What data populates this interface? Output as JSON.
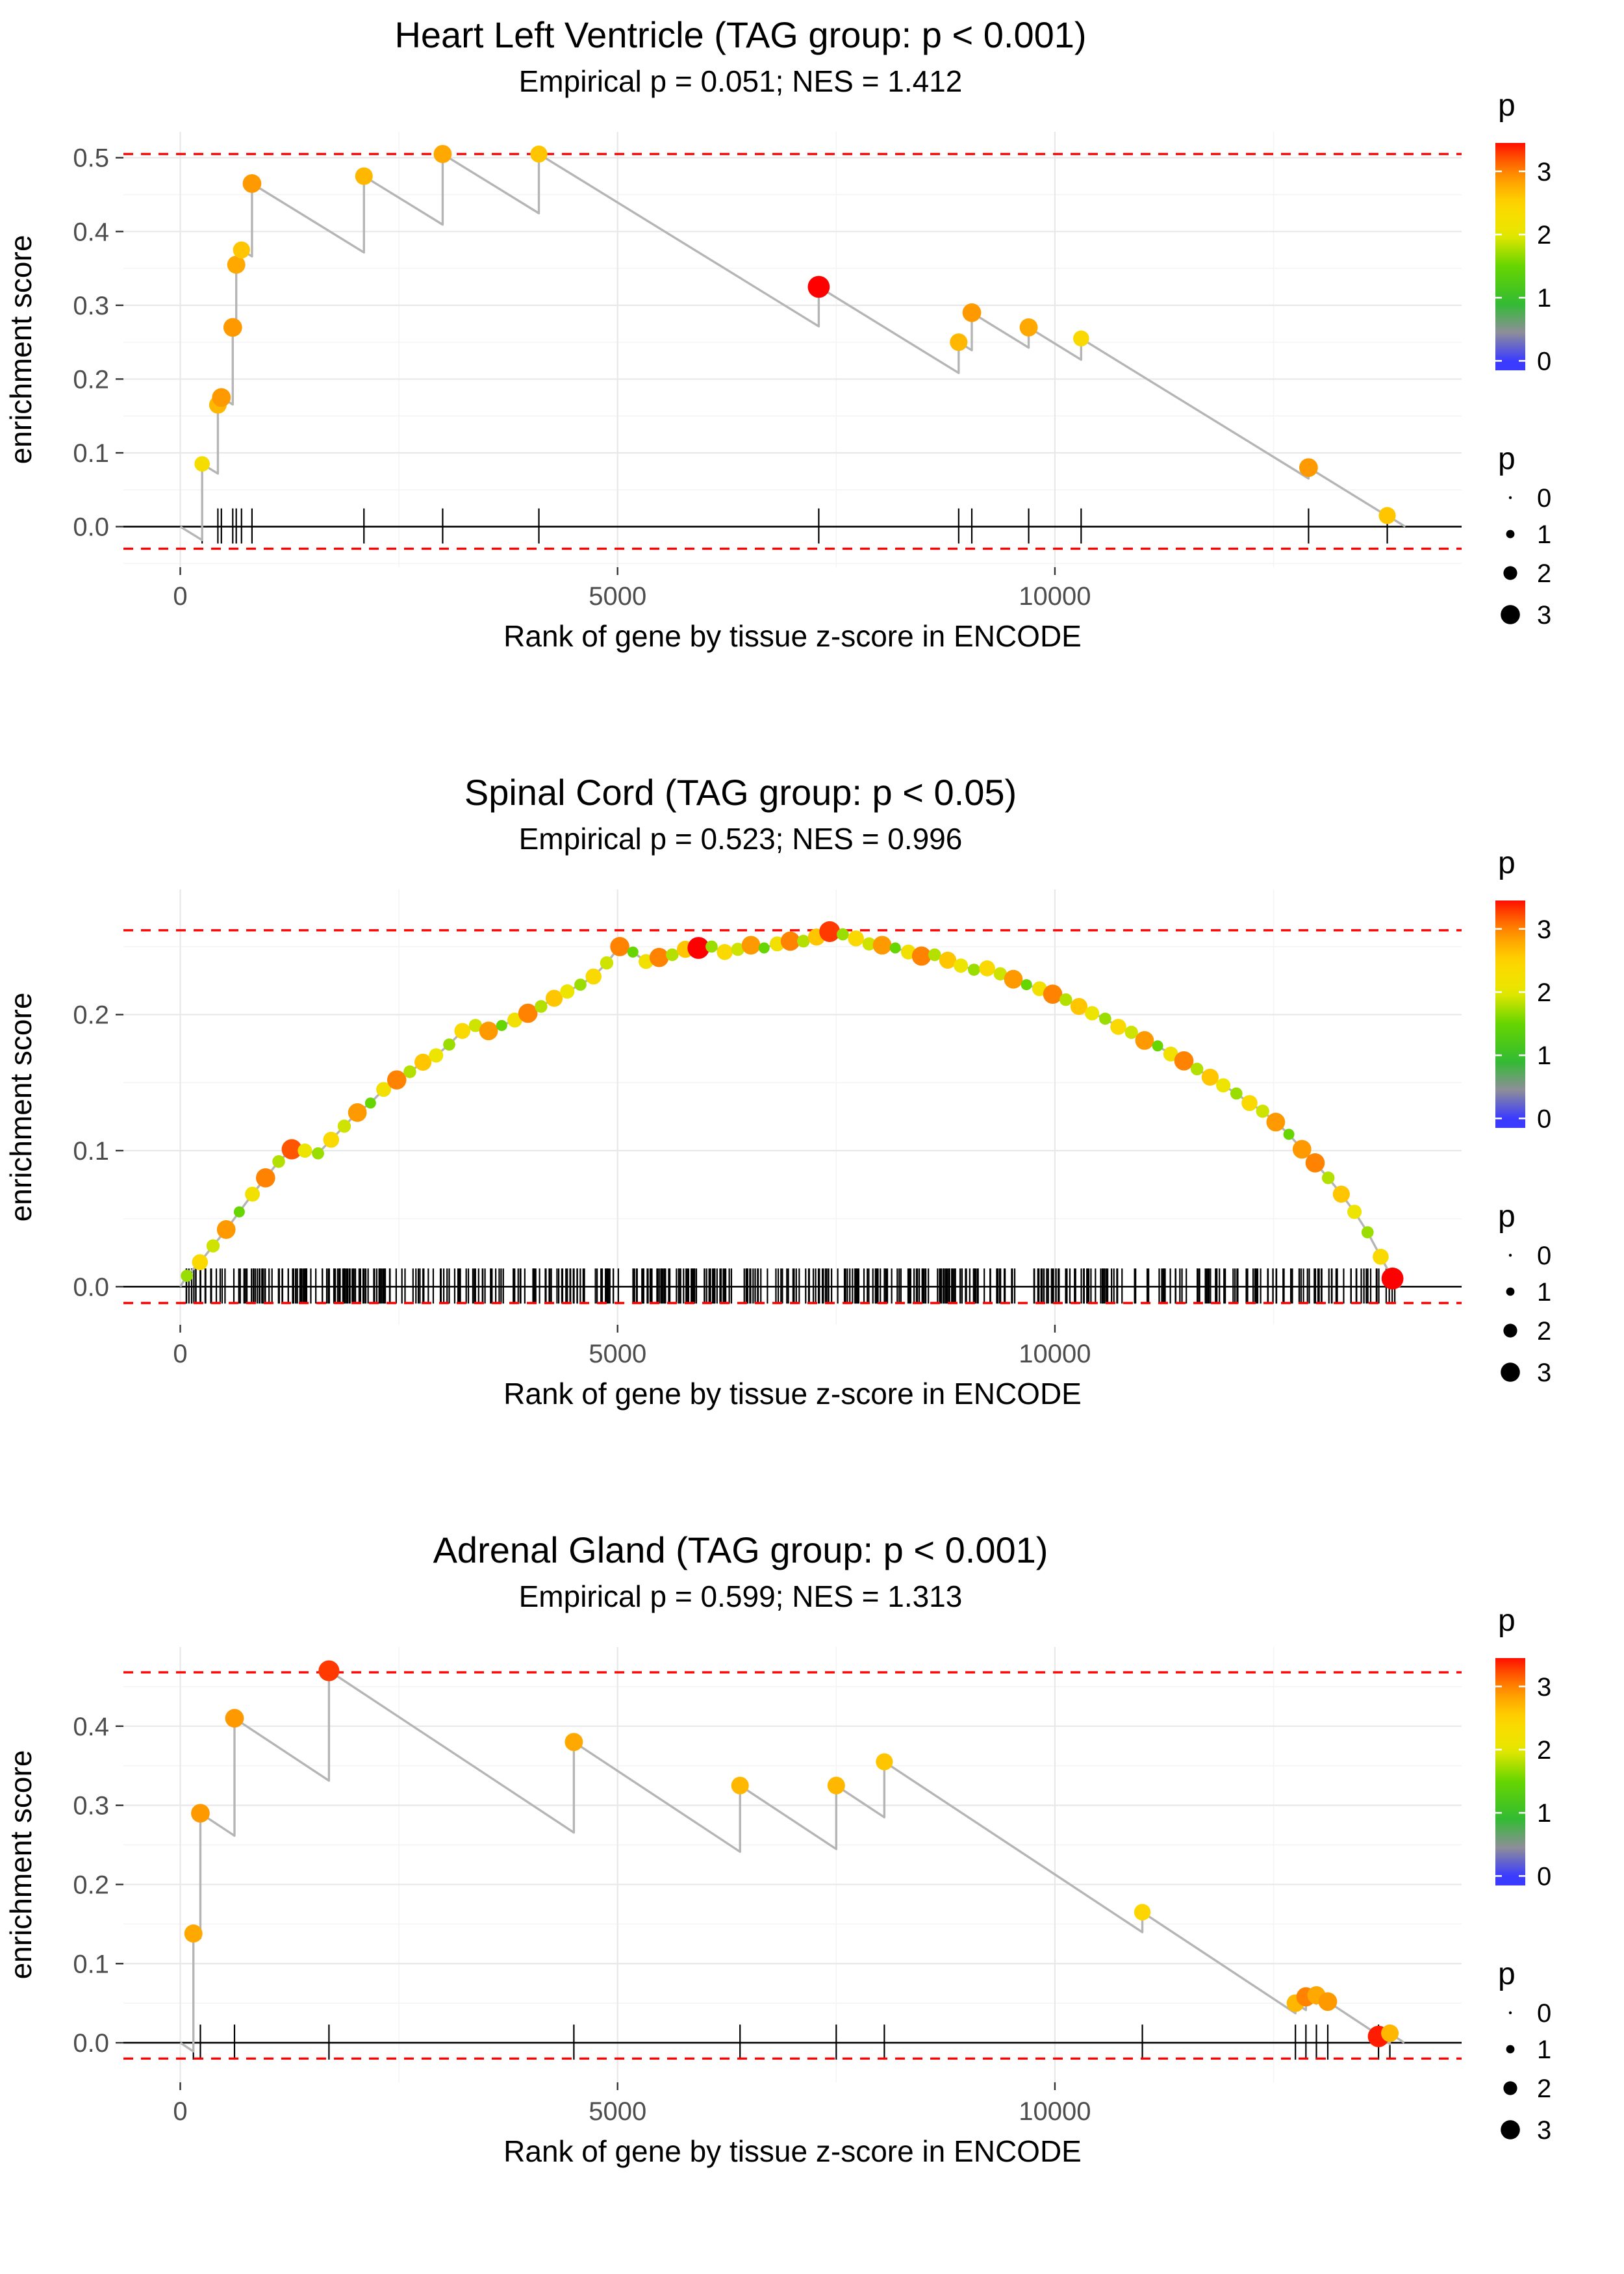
{
  "legend": {
    "color_title": "p",
    "color_ticks": [
      0,
      1,
      2,
      3
    ],
    "size_title": "p",
    "size_ticks": [
      0,
      1,
      2,
      3
    ],
    "p_min": -0.15,
    "p_max": 3.45,
    "colormap": [
      [
        0,
        "#3b3bff"
      ],
      [
        0.45,
        "#8e8e99"
      ],
      [
        0.9,
        "#33bb33"
      ],
      [
        1.5,
        "#66d500"
      ],
      [
        2.0,
        "#e8e800"
      ],
      [
        2.5,
        "#ffd500"
      ],
      [
        2.9,
        "#ff9900"
      ],
      [
        3.2,
        "#ff5500"
      ],
      [
        3.5,
        "#ff0000"
      ]
    ],
    "size_formula": {
      "base": 2.2,
      "per": 4.2
    },
    "legend_dot_radii": [
      2.2,
      6.4,
      10.6,
      14.8
    ]
  },
  "style": {
    "line_color": "#b5b5b5",
    "dashed_color": "#ff0000",
    "zero_line_color": "#000000",
    "rug_color": "#000000",
    "grid_major": "#e8e8e8",
    "grid_minor": "#f4f4f4",
    "tick_text": "#4d4d4d",
    "axis_title": "#000000"
  },
  "chart_data": [
    {
      "type": "line",
      "title": "Heart Left Ventricle (TAG group: p < 0.001)",
      "subtitle": "Empirical p = 0.051; NES = 1.412",
      "xlabel": "Rank of gene by tissue z-score in ENCODE",
      "ylabel": "enrichment score",
      "xlim": [
        -650,
        14650
      ],
      "x_ticks": [
        0,
        5000,
        10000
      ],
      "ylim": [
        -0.055,
        0.535
      ],
      "y_ticks": [
        0.0,
        0.1,
        0.2,
        0.3,
        0.4,
        0.5
      ],
      "dashed_lines": [
        0.505,
        -0.03
      ],
      "zero_line": 0,
      "line_mode": "sawtooth",
      "drop_slope": 7.3e-05,
      "points": [
        [
          250,
          0.085,
          2.3
        ],
        [
          430,
          0.165,
          2.7
        ],
        [
          470,
          0.175,
          2.9
        ],
        [
          600,
          0.27,
          2.9
        ],
        [
          640,
          0.355,
          2.8
        ],
        [
          700,
          0.375,
          2.6
        ],
        [
          820,
          0.465,
          2.9
        ],
        [
          2100,
          0.475,
          2.7
        ],
        [
          3000,
          0.505,
          2.8
        ],
        [
          4100,
          0.505,
          2.6
        ],
        [
          7300,
          0.325,
          3.5
        ],
        [
          8900,
          0.25,
          2.7
        ],
        [
          9050,
          0.29,
          2.9
        ],
        [
          9700,
          0.27,
          2.8
        ],
        [
          10300,
          0.255,
          2.4
        ],
        [
          12900,
          0.08,
          2.9
        ],
        [
          13800,
          0.015,
          2.6
        ]
      ],
      "rug": [
        250,
        430,
        470,
        600,
        640,
        700,
        820,
        2100,
        3000,
        4100,
        7300,
        8900,
        9050,
        9700,
        10300,
        12900,
        13800
      ]
    },
    {
      "type": "line",
      "title": "Spinal Cord (TAG group: p < 0.05)",
      "subtitle": "Empirical p = 0.523; NES = 0.996",
      "xlabel": "Rank of gene by tissue z-score in ENCODE",
      "ylabel": "enrichment score",
      "xlim": [
        -650,
        14650
      ],
      "x_ticks": [
        0,
        5000,
        10000
      ],
      "ylim": [
        -0.028,
        0.292
      ],
      "y_ticks": [
        0.0,
        0.1,
        0.2
      ],
      "dashed_lines": [
        0.262,
        -0.012
      ],
      "zero_line": 0,
      "line_mode": "connect",
      "x_end": 13950,
      "points": [
        [
          75,
          0.008,
          1.7
        ],
        [
          225,
          0.018,
          2.4
        ],
        [
          375,
          0.03,
          1.9
        ],
        [
          525,
          0.042,
          2.9
        ],
        [
          675,
          0.055,
          1.5
        ],
        [
          825,
          0.068,
          2.2
        ],
        [
          975,
          0.08,
          3.0
        ],
        [
          1125,
          0.092,
          1.8
        ],
        [
          1275,
          0.101,
          3.2
        ],
        [
          1425,
          0.1,
          2.1
        ],
        [
          1575,
          0.098,
          1.7
        ],
        [
          1725,
          0.108,
          2.4
        ],
        [
          1875,
          0.118,
          1.9
        ],
        [
          2025,
          0.128,
          2.9
        ],
        [
          2175,
          0.135,
          1.5
        ],
        [
          2325,
          0.145,
          2.2
        ],
        [
          2475,
          0.152,
          3.0
        ],
        [
          2625,
          0.158,
          1.8
        ],
        [
          2775,
          0.165,
          2.6
        ],
        [
          2925,
          0.17,
          2.1
        ],
        [
          3075,
          0.178,
          1.7
        ],
        [
          3225,
          0.188,
          2.4
        ],
        [
          3375,
          0.192,
          1.9
        ],
        [
          3525,
          0.188,
          2.9
        ],
        [
          3675,
          0.192,
          1.5
        ],
        [
          3825,
          0.196,
          2.2
        ],
        [
          3975,
          0.201,
          3.0
        ],
        [
          4125,
          0.206,
          1.8
        ],
        [
          4275,
          0.212,
          2.6
        ],
        [
          4425,
          0.217,
          2.1
        ],
        [
          4575,
          0.222,
          1.7
        ],
        [
          4725,
          0.228,
          2.4
        ],
        [
          4875,
          0.238,
          1.9
        ],
        [
          5025,
          0.25,
          3.0
        ],
        [
          5175,
          0.246,
          1.5
        ],
        [
          5325,
          0.239,
          2.2
        ],
        [
          5475,
          0.242,
          3.0
        ],
        [
          5625,
          0.244,
          1.8
        ],
        [
          5775,
          0.248,
          2.6
        ],
        [
          5925,
          0.249,
          3.5
        ],
        [
          6075,
          0.25,
          1.7
        ],
        [
          6225,
          0.246,
          2.4
        ],
        [
          6375,
          0.248,
          1.9
        ],
        [
          6525,
          0.251,
          2.9
        ],
        [
          6675,
          0.249,
          1.5
        ],
        [
          6825,
          0.252,
          2.2
        ],
        [
          6975,
          0.254,
          3.0
        ],
        [
          7125,
          0.254,
          1.8
        ],
        [
          7275,
          0.257,
          2.6
        ],
        [
          7425,
          0.261,
          3.3
        ],
        [
          7575,
          0.259,
          1.7
        ],
        [
          7725,
          0.256,
          2.4
        ],
        [
          7875,
          0.252,
          1.9
        ],
        [
          8025,
          0.251,
          2.9
        ],
        [
          8175,
          0.249,
          1.5
        ],
        [
          8325,
          0.246,
          2.2
        ],
        [
          8475,
          0.243,
          3.0
        ],
        [
          8625,
          0.244,
          1.8
        ],
        [
          8775,
          0.24,
          2.6
        ],
        [
          8925,
          0.236,
          2.1
        ],
        [
          9075,
          0.233,
          1.7
        ],
        [
          9225,
          0.234,
          2.4
        ],
        [
          9375,
          0.23,
          1.9
        ],
        [
          9525,
          0.226,
          2.9
        ],
        [
          9675,
          0.222,
          1.5
        ],
        [
          9825,
          0.219,
          2.2
        ],
        [
          9975,
          0.215,
          3.0
        ],
        [
          10125,
          0.211,
          1.8
        ],
        [
          10275,
          0.206,
          2.6
        ],
        [
          10425,
          0.201,
          2.1
        ],
        [
          10575,
          0.197,
          1.7
        ],
        [
          10725,
          0.191,
          2.4
        ],
        [
          10875,
          0.187,
          1.9
        ],
        [
          11025,
          0.181,
          2.9
        ],
        [
          11175,
          0.177,
          1.5
        ],
        [
          11325,
          0.171,
          2.2
        ],
        [
          11475,
          0.166,
          3.0
        ],
        [
          11625,
          0.16,
          1.8
        ],
        [
          11775,
          0.154,
          2.6
        ],
        [
          11925,
          0.148,
          2.1
        ],
        [
          12075,
          0.142,
          1.7
        ],
        [
          12225,
          0.135,
          2.4
        ],
        [
          12375,
          0.129,
          1.9
        ],
        [
          12525,
          0.121,
          2.9
        ],
        [
          12675,
          0.112,
          1.5
        ],
        [
          12825,
          0.101,
          2.9
        ],
        [
          12975,
          0.091,
          3.0
        ],
        [
          13125,
          0.08,
          1.8
        ],
        [
          13275,
          0.068,
          2.6
        ],
        [
          13425,
          0.055,
          2.1
        ],
        [
          13575,
          0.04,
          1.7
        ],
        [
          13725,
          0.022,
          2.4
        ],
        [
          13860,
          0.006,
          3.5
        ]
      ],
      "rug": {
        "count": 520,
        "min": 60,
        "max": 13920,
        "seed": 11
      }
    },
    {
      "type": "line",
      "title": "Adrenal Gland (TAG group: p < 0.001)",
      "subtitle": "Empirical p = 0.599; NES = 1.313",
      "xlabel": "Rank of gene by tissue z-score in ENCODE",
      "ylabel": "enrichment score",
      "xlim": [
        -650,
        14650
      ],
      "x_ticks": [
        0,
        5000,
        10000
      ],
      "ylim": [
        -0.05,
        0.5
      ],
      "y_ticks": [
        0.0,
        0.1,
        0.2,
        0.3,
        0.4
      ],
      "dashed_lines": [
        0.468,
        -0.02
      ],
      "zero_line": 0,
      "line_mode": "sawtooth",
      "drop_slope": 7.3e-05,
      "points": [
        [
          150,
          0.138,
          2.8
        ],
        [
          230,
          0.29,
          2.9
        ],
        [
          620,
          0.41,
          2.9
        ],
        [
          1700,
          0.47,
          3.3
        ],
        [
          4500,
          0.38,
          2.8
        ],
        [
          6400,
          0.325,
          2.7
        ],
        [
          7500,
          0.325,
          2.7
        ],
        [
          8050,
          0.355,
          2.6
        ],
        [
          11000,
          0.165,
          2.5
        ],
        [
          12750,
          0.05,
          2.7
        ],
        [
          12870,
          0.058,
          3.0
        ],
        [
          12990,
          0.06,
          2.8
        ],
        [
          13120,
          0.052,
          2.9
        ],
        [
          13700,
          0.008,
          3.4
        ],
        [
          13830,
          0.012,
          2.7
        ]
      ],
      "rug": [
        150,
        230,
        620,
        1700,
        4500,
        6400,
        7500,
        8050,
        11000,
        12750,
        12870,
        12990,
        13120,
        13700,
        13830
      ]
    }
  ]
}
